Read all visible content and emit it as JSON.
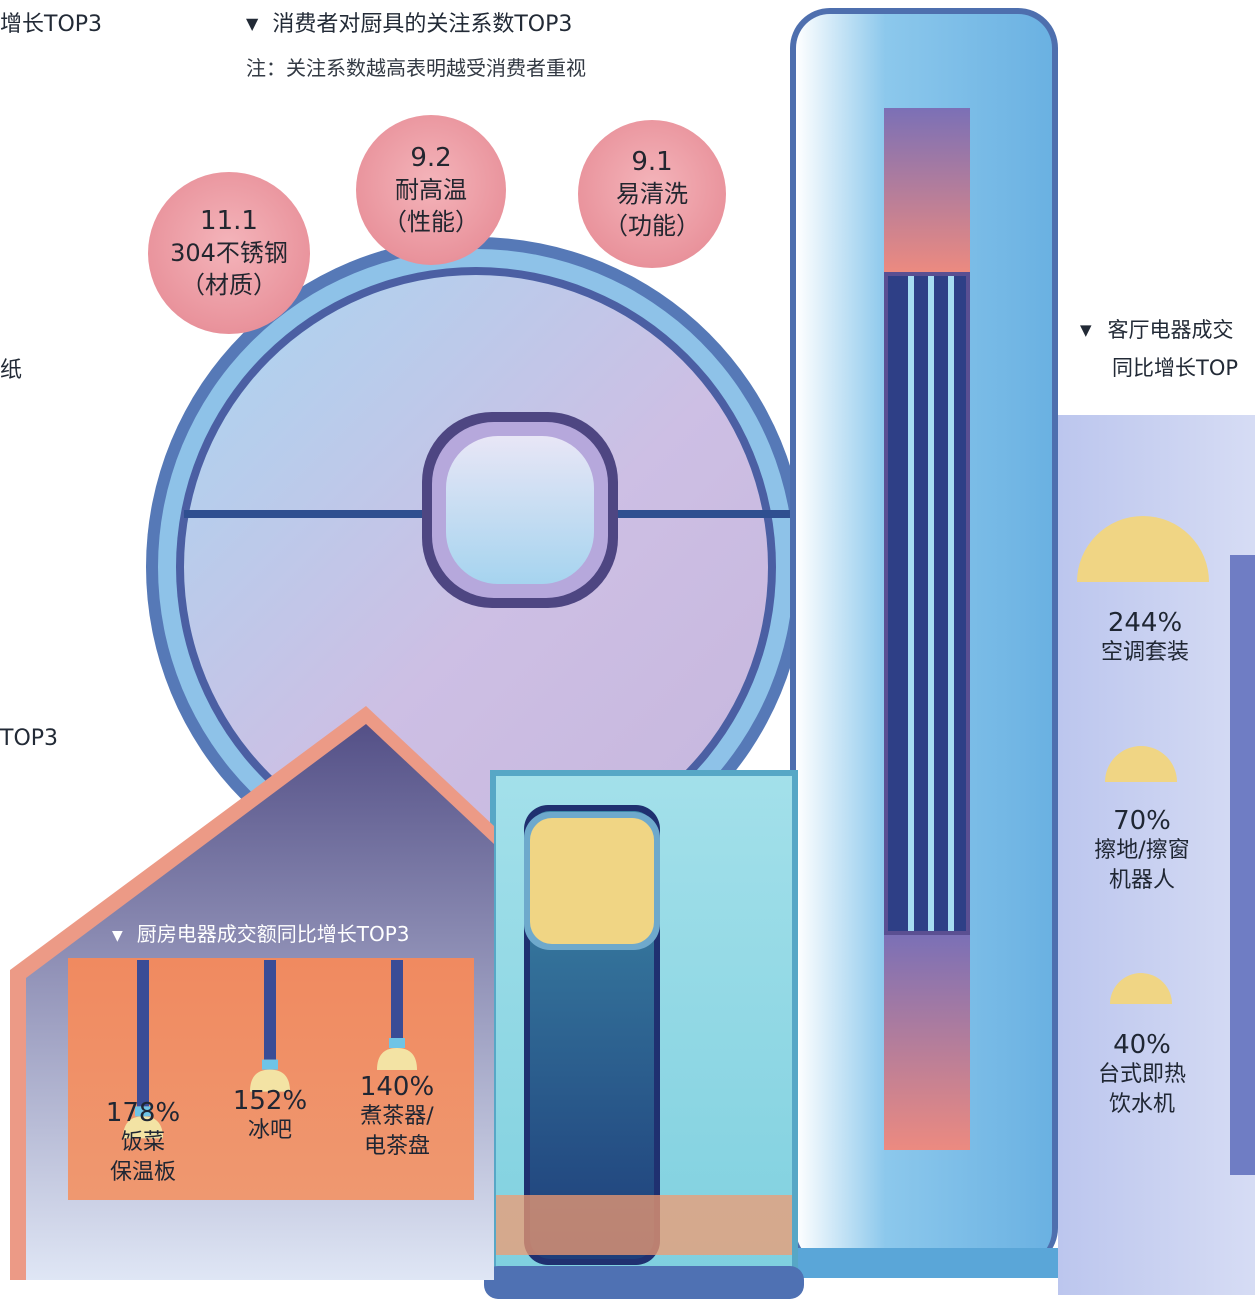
{
  "header_left_partial": "增长TOP3",
  "left_partial_1": "纸",
  "left_partial_2": "TOP3",
  "chart_data": [
    {
      "type": "bubble",
      "title": "消费者对厨具的关注系数TOP3",
      "note": "注：关注系数越高表明越受消费者重视",
      "items": [
        {
          "value": "11.1",
          "label": "304不锈钢",
          "category": "（材质）"
        },
        {
          "value": "9.2",
          "label": "耐高温",
          "category": "（性能）"
        },
        {
          "value": "9.1",
          "label": "易清洗",
          "category": "（功能）"
        }
      ]
    },
    {
      "type": "bar",
      "title": "厨房电器成交额同比增长TOP3",
      "categories": [
        "饭菜保温板",
        "冰吧",
        "煮茶器/电茶盘"
      ],
      "values": [
        178,
        152,
        140
      ],
      "labels": [
        {
          "pct": "178%",
          "line1": "饭菜",
          "line2": "保温板"
        },
        {
          "pct": "152%",
          "line1": "冰吧",
          "line2": ""
        },
        {
          "pct": "140%",
          "line1": "煮茶器/",
          "line2": "电茶盘"
        }
      ]
    },
    {
      "type": "bar",
      "title_line1": "客厅电器成交",
      "title_line2": "同比增长TOP",
      "categories": [
        "空调套装",
        "擦地/擦窗机器人",
        "台式即热饮水机"
      ],
      "values": [
        244,
        70,
        40
      ],
      "labels": [
        {
          "pct": "244%",
          "line1": "空调套装",
          "line2": ""
        },
        {
          "pct": "70%",
          "line1": "擦地/擦窗",
          "line2": "机器人"
        },
        {
          "pct": "40%",
          "line1": "台式即热",
          "line2": "饮水机"
        }
      ]
    }
  ],
  "colors": {
    "bubble": "#ea959e",
    "kitchen_panel": "#f08a60",
    "house_roof": "#544c7e",
    "lamp": "#f3e3a4",
    "dome": "#f0d584",
    "cabinet": "#7cc0e6",
    "robot_ring": "#7ab7e2",
    "robot_body": "#cfc3e6"
  }
}
